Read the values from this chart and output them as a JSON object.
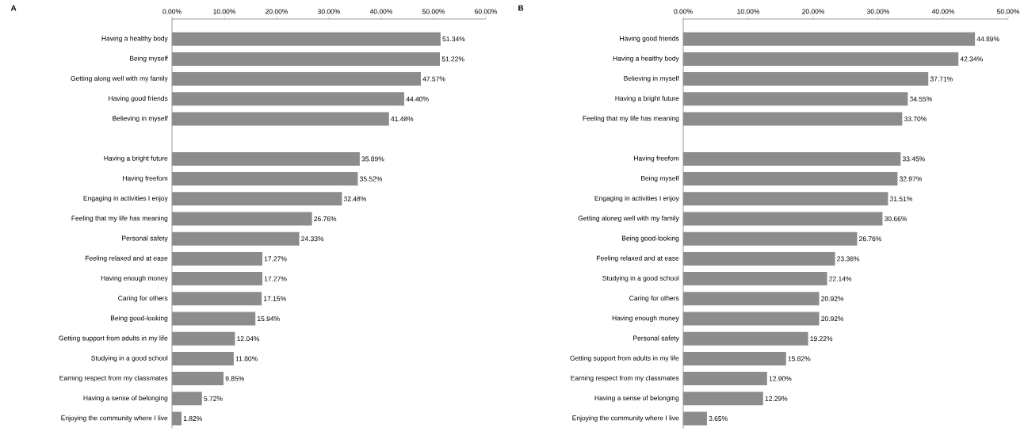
{
  "chart_data": [
    {
      "type": "bar",
      "orientation": "horizontal",
      "title": "A",
      "color": "#8c8c8c",
      "categories": [
        "Having a healthy body",
        "Being myself",
        "Getting along well with my family",
        "Having good friends",
        "Believing in myself",
        null,
        "Having a bright future",
        "Having freefom",
        "Engaging in activities I enjoy",
        "Feeling that my life has meaning",
        "Personal safety",
        "Feeling relaxed and at ease",
        "Having enough money",
        "Caring for others",
        "Being good-looking",
        "Getting support from adults in my life",
        "Studying in a good school",
        "Earning respect from my classmates",
        "Having a sense of belonging",
        "Enjoying the community where I live"
      ],
      "values": [
        51.34,
        51.22,
        47.57,
        44.4,
        41.48,
        null,
        35.89,
        35.52,
        32.48,
        26.76,
        24.33,
        17.27,
        17.27,
        17.15,
        15.94,
        12.04,
        11.8,
        9.85,
        5.72,
        1.82
      ],
      "value_labels": [
        "51.34%",
        "51.22%",
        "47.57%",
        "44.40%",
        "41.48%",
        null,
        "35.89%",
        "35.52%",
        "32.48%",
        "26.76%",
        "24.33%",
        "17.27%",
        "17.27%",
        "17.15%",
        "15.94%",
        "12.04%",
        "11.80%",
        "9.85%",
        "5.72%",
        "1.82%"
      ],
      "xlim": [
        0,
        60
      ],
      "xticks": [
        {
          "value": 0,
          "label": "0.00%"
        },
        {
          "value": 10,
          "label": "10.00%"
        },
        {
          "value": 20,
          "label": "20.00%"
        },
        {
          "value": 30,
          "label": "30.00%"
        },
        {
          "value": 40,
          "label": "40.00%"
        },
        {
          "value": 50,
          "label": "50.00%"
        },
        {
          "value": 60,
          "label": "60.00%"
        }
      ]
    },
    {
      "type": "bar",
      "orientation": "horizontal",
      "title": "B",
      "color": "#8c8c8c",
      "categories": [
        "Having good friends",
        "Having a healthy body",
        "Believing in myself",
        "Having a bright future",
        "Feeling that my life has meaning",
        null,
        "Having freefom",
        "Being myself",
        "Engaging in activities I enjoy",
        "Getting aloneg well with my family",
        "Being good-looking",
        "Feeling relaxed and at ease",
        "Studying in a good school",
        "Caring for others",
        "Having enough money",
        "Personal safety",
        "Getting support from adults in my life",
        "Earning respect from my classmates",
        "Having a sense of belonging",
        "Enjoying the community where I live"
      ],
      "values": [
        44.89,
        42.34,
        37.71,
        34.55,
        33.7,
        null,
        33.45,
        32.97,
        31.51,
        30.66,
        26.76,
        23.36,
        22.14,
        20.92,
        20.92,
        19.22,
        15.82,
        12.9,
        12.29,
        3.65
      ],
      "value_labels": [
        "44.89%",
        "42.34%",
        "37.71%",
        "34.55%",
        "33.70%",
        null,
        "33.45%",
        "32.97%",
        "31.51%",
        "30.66%",
        "26.76%",
        "23.36%",
        "22.14%",
        "20.92%",
        "20.92%",
        "19.22%",
        "15.82%",
        "12.90%",
        "12.29%",
        "3.65%"
      ],
      "xlim": [
        0,
        50
      ],
      "xticks": [
        {
          "value": 0,
          "label": "0.00%"
        },
        {
          "value": 10,
          "label": "10.00%"
        },
        {
          "value": 20,
          "label": "20.00%"
        },
        {
          "value": 30,
          "label": "30.00%"
        },
        {
          "value": 40,
          "label": "40.00%"
        },
        {
          "value": 50,
          "label": "50.00%"
        }
      ]
    }
  ]
}
